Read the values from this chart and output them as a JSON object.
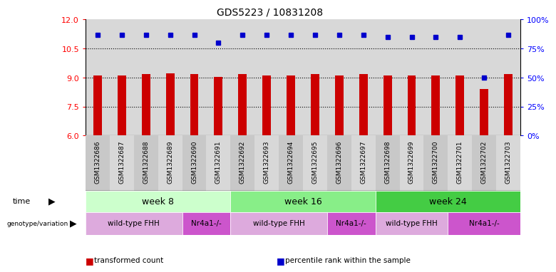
{
  "title": "GDS5223 / 10831208",
  "samples": [
    "GSM1322686",
    "GSM1322687",
    "GSM1322688",
    "GSM1322689",
    "GSM1322690",
    "GSM1322691",
    "GSM1322692",
    "GSM1322693",
    "GSM1322694",
    "GSM1322695",
    "GSM1322696",
    "GSM1322697",
    "GSM1322698",
    "GSM1322699",
    "GSM1322700",
    "GSM1322701",
    "GSM1322702",
    "GSM1322703"
  ],
  "transformed_count": [
    9.12,
    9.12,
    9.18,
    9.22,
    9.2,
    9.05,
    9.18,
    9.12,
    9.12,
    9.18,
    9.1,
    9.18,
    9.12,
    9.12,
    9.12,
    9.12,
    8.42,
    9.18
  ],
  "percentile_rank": [
    87,
    87,
    87,
    87,
    87,
    80,
    87,
    87,
    87,
    87,
    87,
    87,
    85,
    85,
    85,
    85,
    50,
    87
  ],
  "ylim_left": [
    6,
    12
  ],
  "ylim_right": [
    0,
    100
  ],
  "yticks_left": [
    6,
    7.5,
    9,
    10.5,
    12
  ],
  "yticks_right": [
    0,
    25,
    50,
    75,
    100
  ],
  "bar_color": "#cc0000",
  "dot_color": "#0000cc",
  "grid_values": [
    7.5,
    9.0,
    10.5
  ],
  "week_data": [
    {
      "label": "week 8",
      "start": 0,
      "end": 6,
      "color": "#ccffcc"
    },
    {
      "label": "week 16",
      "start": 6,
      "end": 12,
      "color": "#88ee88"
    },
    {
      "label": "week 24",
      "start": 12,
      "end": 18,
      "color": "#44cc44"
    }
  ],
  "geno_data": [
    {
      "label": "wild-type FHH",
      "start": 0,
      "end": 4,
      "color": "#ddaadd"
    },
    {
      "label": "Nr4a1-/-",
      "start": 4,
      "end": 6,
      "color": "#cc55cc"
    },
    {
      "label": "wild-type FHH",
      "start": 6,
      "end": 10,
      "color": "#ddaadd"
    },
    {
      "label": "Nr4a1-/-",
      "start": 10,
      "end": 12,
      "color": "#cc55cc"
    },
    {
      "label": "wild-type FHH",
      "start": 12,
      "end": 15,
      "color": "#ddaadd"
    },
    {
      "label": "Nr4a1-/-",
      "start": 15,
      "end": 18,
      "color": "#cc55cc"
    }
  ],
  "legend_items": [
    {
      "label": "transformed count",
      "color": "#cc0000"
    },
    {
      "label": "percentile rank within the sample",
      "color": "#0000cc"
    }
  ],
  "bar_width": 0.35,
  "col_bg_color": "#d8d8d8",
  "fig_bg": "#ffffff"
}
